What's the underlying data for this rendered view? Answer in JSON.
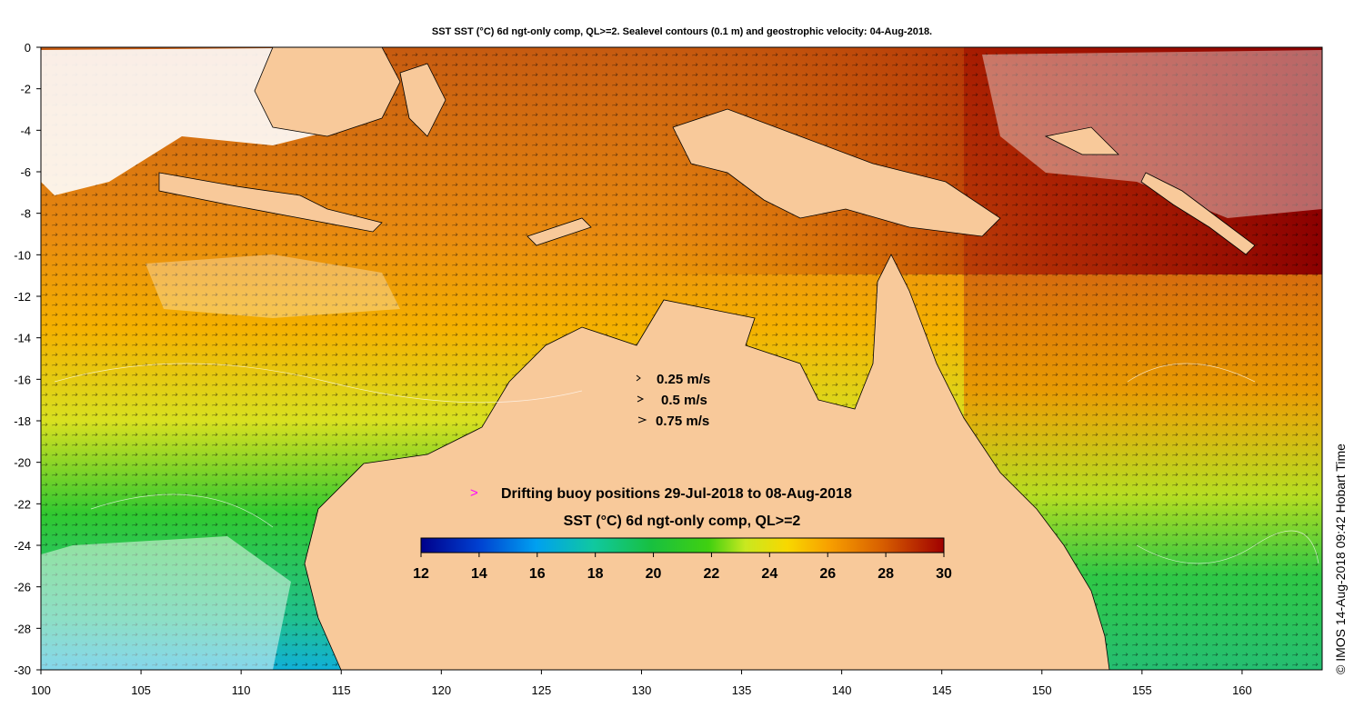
{
  "title": "SST SST (°C) 6d ngt-only comp, QL>=2. Sealevel contours (0.1 m) and geostrophic velocity: 04-Aug-2018.",
  "credit": "© IMOS 14-Aug-2018 09:42 Hobart Time",
  "axes": {
    "x_ticks": [
      "100",
      "105",
      "110",
      "115",
      "120",
      "125",
      "130",
      "135",
      "140",
      "145",
      "150",
      "155",
      "160"
    ],
    "y_ticks": [
      "0",
      "-2",
      "-4",
      "-6",
      "-8",
      "-10",
      "-12",
      "-14",
      "-16",
      "-18",
      "-20",
      "-22",
      "-24",
      "-26",
      "-28",
      "-30"
    ],
    "xlim": [
      100,
      164
    ],
    "ylim": [
      -30,
      0
    ]
  },
  "velocity_legend": [
    {
      "label": "0.25 m/s"
    },
    {
      "label": "0.5 m/s"
    },
    {
      "label": "0.75 m/s"
    }
  ],
  "buoy_legend": {
    "marker": ">",
    "label": "Drifting buoy positions 29-Jul-2018 to 08-Aug-2018",
    "color": "#ff00ff"
  },
  "colorbar": {
    "title": "SST (°C) 6d ngt-only comp, QL>=2",
    "ticks": [
      "12",
      "14",
      "16",
      "18",
      "20",
      "22",
      "24",
      "26",
      "28",
      "30"
    ],
    "range": [
      12,
      30
    ]
  },
  "colors": {
    "land": "#f8c99a",
    "cloud": "#ffffff",
    "ramp": [
      "#00008b",
      "#0050d8",
      "#00b4e8",
      "#10c060",
      "#28c828",
      "#b8e820",
      "#f8e000",
      "#f8a000",
      "#d86000",
      "#a81000",
      "#8b0000"
    ]
  }
}
